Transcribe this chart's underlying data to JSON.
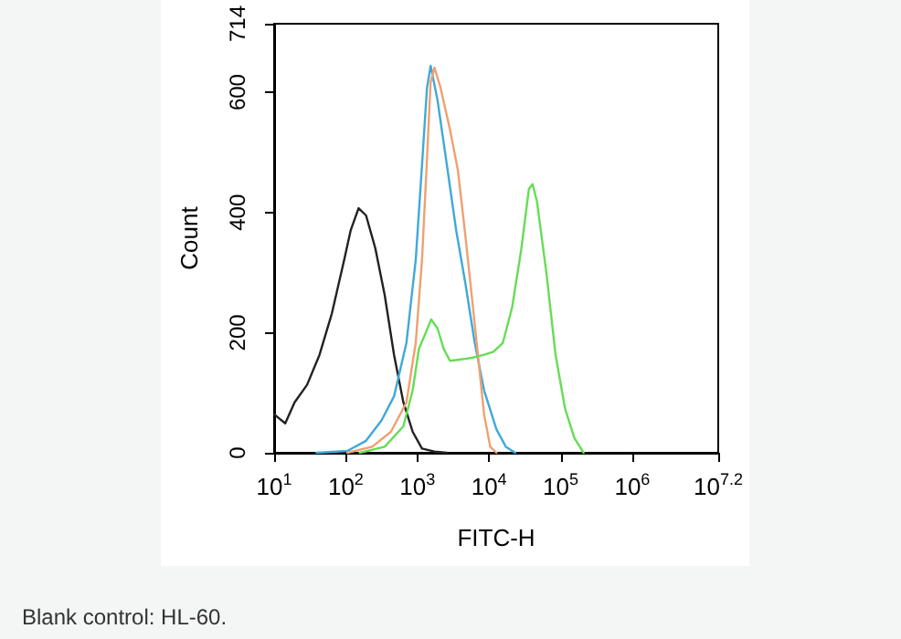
{
  "chart_data": {
    "type": "line",
    "xlabel": "FITC-H",
    "ylabel": "Count",
    "log": "x",
    "xlim": [
      10,
      15848932
    ],
    "ylim": [
      0,
      714
    ],
    "xticks": [
      {
        "value": 10,
        "label": "10$^{1}$"
      },
      {
        "value": 100,
        "label": "10$^{2}$"
      },
      {
        "value": 1000,
        "label": "10$^{3}$"
      },
      {
        "value": 10000,
        "label": "10$^{4}$"
      },
      {
        "value": 100000,
        "label": "10$^{5}$"
      },
      {
        "value": 1000000,
        "label": "10$^{6}$"
      },
      {
        "value": 15848932,
        "label": "10$^{7.2}$"
      }
    ],
    "yticks": [
      0,
      200,
      400,
      600,
      714
    ],
    "grid": false,
    "marker": "none",
    "line_style": "solid",
    "annotations": [
      "Blank control: HL-60."
    ],
    "series": [
      {
        "color": "#222222",
        "x": [
          10,
          14.3,
          19.3,
          28.8,
          43,
          64,
          95,
          117,
          151,
          192,
          259,
          350,
          472,
          637,
          859,
          1160,
          1730,
          2570
        ],
        "values": [
          64,
          49,
          84,
          113,
          163,
          232,
          321,
          370,
          407,
          395,
          340,
          262,
          163,
          84,
          35,
          7,
          2,
          0
        ]
      },
      {
        "color": "#3fa9d8",
        "x": [
          39,
          105,
          192,
          316,
          472,
          703,
          948,
          1160,
          1360,
          1530,
          1910,
          2580,
          3480,
          4690,
          6320,
          8530,
          12700,
          17200,
          23200
        ],
        "values": [
          0,
          3,
          20,
          54,
          94,
          183,
          321,
          479,
          607,
          644,
          587,
          479,
          370,
          281,
          183,
          104,
          39,
          10,
          0
        ]
      },
      {
        "color": "#f0a070",
        "x": [
          105,
          234,
          427,
          703,
          948,
          1160,
          1360,
          1530,
          1730,
          2110,
          2850,
          3690,
          4690,
          5730,
          7000,
          8530,
          10400,
          12700
        ],
        "values": [
          0,
          10,
          35,
          84,
          183,
          321,
          488,
          617,
          641,
          607,
          538,
          469,
          360,
          262,
          163,
          64,
          10,
          0
        ]
      },
      {
        "color": "#66dd55",
        "x": [
          157,
          350,
          637,
          859,
          1050,
          1280,
          1560,
          1910,
          2330,
          2850,
          3840,
          5730,
          8530,
          11500,
          15600,
          21000,
          28300,
          36000,
          40600,
          46600,
          63000,
          84900,
          115000,
          155000,
          209000
        ],
        "values": [
          0,
          10,
          44,
          104,
          173,
          197,
          222,
          207,
          173,
          153,
          155,
          158,
          163,
          168,
          183,
          242,
          340,
          439,
          447,
          419,
          301,
          163,
          74,
          25,
          0
        ]
      }
    ]
  }
}
